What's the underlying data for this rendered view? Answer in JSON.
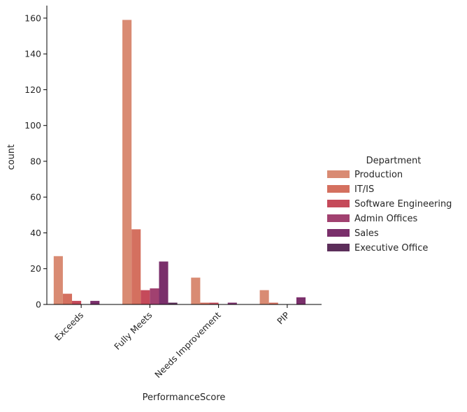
{
  "chart_data": {
    "type": "bar",
    "xlabel": "PerformanceScore",
    "ylabel": "count",
    "categories": [
      "Exceeds",
      "Fully Meets",
      "Needs Improvement",
      "PIP"
    ],
    "ylim": [
      0,
      167
    ],
    "yticks": [
      0,
      20,
      40,
      60,
      80,
      100,
      120,
      140,
      160
    ],
    "grid": false,
    "legend": {
      "title": "Department",
      "placement": "right"
    },
    "series": [
      {
        "name": "Production",
        "color": "#d98b73",
        "values": [
          27,
          159,
          15,
          8
        ]
      },
      {
        "name": "IT/IS",
        "color": "#d4705f",
        "values": [
          6,
          42,
          1,
          1
        ]
      },
      {
        "name": "Software Engineering",
        "color": "#c54a5a",
        "values": [
          2,
          8,
          1,
          0
        ]
      },
      {
        "name": "Admin Offices",
        "color": "#a14170",
        "values": [
          0,
          9,
          0,
          0
        ]
      },
      {
        "name": "Sales",
        "color": "#7a2f6b",
        "values": [
          2,
          24,
          1,
          4
        ]
      },
      {
        "name": "Executive Office",
        "color": "#5c2e5a",
        "values": [
          0,
          1,
          0,
          0
        ]
      }
    ]
  }
}
